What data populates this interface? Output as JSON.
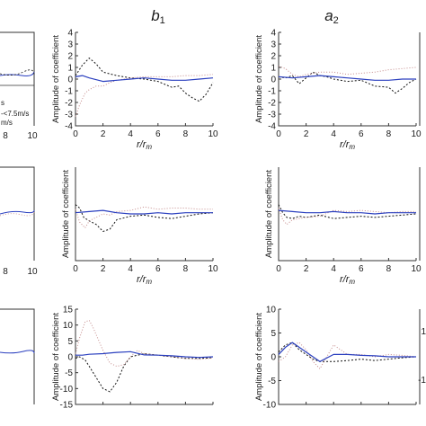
{
  "columns": [
    {
      "symbol": "b",
      "subscript": "1"
    },
    {
      "symbol": "a",
      "subscript": "2"
    }
  ],
  "axis_labels": {
    "y": "Amplitude of coefficient",
    "x_main": "r",
    "x_sub1": "r",
    "x_sub2": "m"
  },
  "legend_fragments": [
    "s",
    "-<7.5m/s",
    "m/s"
  ],
  "edge_ticks": {
    "left": [
      "8",
      "10",
      "8",
      "10",
      "8",
      "10"
    ],
    "right": [
      "1",
      "-1"
    ]
  },
  "chart_data": [
    {
      "type": "line",
      "panel": "row1-b1",
      "xlabel": "r/r_m",
      "ylabel": "Amplitude of coefficient",
      "xlim": [
        0,
        10
      ],
      "ylim": [
        -4,
        4
      ],
      "xticks": [
        "0",
        "2",
        "4",
        "6",
        "8",
        "10"
      ],
      "yticks": [
        "4",
        "3",
        "2",
        "1",
        "0",
        "-1",
        "-2",
        "-3",
        "-4"
      ],
      "series": [
        {
          "color": "#111111",
          "dash": "2,2",
          "x": [
            0,
            0.5,
            1,
            1.5,
            2,
            3,
            4,
            5,
            6,
            7,
            7.5,
            8,
            8.5,
            9,
            9.5,
            10
          ],
          "y": [
            0.3,
            1.2,
            1.8,
            1.3,
            0.6,
            0.3,
            0.1,
            0,
            -0.2,
            -0.7,
            -0.6,
            -1.2,
            -1.6,
            -1.9,
            -1.3,
            -0.3
          ]
        },
        {
          "color": "#c48a8a",
          "dash": "1,2",
          "x": [
            0,
            0.3,
            0.7,
            1,
            1.5,
            2,
            2.5,
            3,
            4,
            5,
            6,
            7,
            8,
            9,
            10
          ],
          "y": [
            -3.2,
            -2.2,
            -1.2,
            -0.9,
            -0.6,
            -0.6,
            -0.3,
            -0.1,
            0.1,
            0.2,
            0.2,
            0.2,
            0.3,
            0.3,
            0.4
          ]
        },
        {
          "color": "#2a3fbf",
          "dash": "",
          "x": [
            0,
            0.5,
            1,
            2,
            3,
            4,
            5,
            6,
            7,
            8,
            9,
            10
          ],
          "y": [
            0.2,
            0.3,
            0.1,
            -0.2,
            -0.1,
            0,
            0.1,
            0,
            -0.1,
            -0.1,
            0,
            0.1
          ]
        }
      ]
    },
    {
      "type": "line",
      "panel": "row1-a2",
      "xlabel": "r/r_m",
      "ylabel": "Amplitude of coefficient",
      "xlim": [
        0,
        10
      ],
      "ylim": [
        -4,
        4
      ],
      "xticks": [
        "0",
        "2",
        "4",
        "6",
        "8",
        "10"
      ],
      "yticks": [
        "4",
        "3",
        "2",
        "1",
        "0",
        "-1",
        "-2",
        "-3",
        "-4"
      ],
      "series": [
        {
          "color": "#111111",
          "dash": "2,2",
          "x": [
            0,
            0.5,
            1,
            1.5,
            2,
            2.5,
            3,
            3.5,
            4,
            5,
            6,
            7,
            8,
            8.5,
            9,
            9.5,
            10
          ],
          "y": [
            0.2,
            0.1,
            0.3,
            -0.4,
            0.1,
            0.6,
            0.3,
            0.2,
            0,
            -0.2,
            -0.1,
            -0.6,
            -0.7,
            -1.2,
            -0.8,
            -0.3,
            0
          ]
        },
        {
          "color": "#c48a8a",
          "dash": "1,2",
          "x": [
            0,
            0.5,
            1,
            1.5,
            2,
            3,
            4,
            5,
            6,
            7,
            8,
            9,
            10
          ],
          "y": [
            1.1,
            0.9,
            0.4,
            0.2,
            0.4,
            0.6,
            0.6,
            0.4,
            0.5,
            0.6,
            0.8,
            0.9,
            1.0
          ]
        },
        {
          "color": "#2a3fbf",
          "dash": "",
          "x": [
            0,
            1,
            2,
            3,
            4,
            5,
            6,
            7,
            8,
            9,
            10
          ],
          "y": [
            0.2,
            0.1,
            0.2,
            0.3,
            0.2,
            0.1,
            0,
            -0.1,
            -0.1,
            0,
            0
          ]
        }
      ]
    },
    {
      "type": "line",
      "panel": "row2-b1",
      "xlabel": "r/r_m",
      "ylabel": "Amplitude of coefficient",
      "xlim": [
        0,
        10
      ],
      "ylim": [
        -4,
        4
      ],
      "xticks": [
        "0",
        "2",
        "4",
        "6",
        "8",
        "10"
      ],
      "yticks": [],
      "series": [
        {
          "color": "#111111",
          "dash": "2,2",
          "x": [
            0,
            0.3,
            0.6,
            1,
            1.5,
            2,
            2.5,
            3,
            4,
            5,
            6,
            7,
            8,
            9,
            10
          ],
          "y": [
            0.8,
            0.5,
            -0.3,
            -0.6,
            -0.9,
            -1.5,
            -1.3,
            -0.5,
            -0.2,
            -0.1,
            -0.3,
            -0.4,
            -0.2,
            0,
            0.1
          ]
        },
        {
          "color": "#c48a8a",
          "dash": "1,2",
          "x": [
            0,
            0.3,
            0.7,
            1,
            1.5,
            2,
            2.5,
            3,
            4,
            5,
            6,
            7,
            8,
            9,
            10
          ],
          "y": [
            0.4,
            -0.7,
            -1.2,
            -0.6,
            -0.3,
            0,
            -0.1,
            0.2,
            0.3,
            0.6,
            0.4,
            0.5,
            0.5,
            0.4,
            0.4
          ]
        },
        {
          "color": "#2a3fbf",
          "dash": "",
          "x": [
            0,
            1,
            2,
            3,
            4,
            5,
            6,
            7,
            8,
            9,
            10
          ],
          "y": [
            0.1,
            0.2,
            0.3,
            0.1,
            0,
            0,
            0.1,
            0,
            0.1,
            0.1,
            0.1
          ]
        }
      ]
    },
    {
      "type": "line",
      "panel": "row2-a2",
      "xlabel": "r/r_m",
      "ylabel": "Amplitude of coefficient",
      "xlim": [
        0,
        10
      ],
      "ylim": [
        -4,
        4
      ],
      "xticks": [
        "0",
        "2",
        "4",
        "6",
        "8",
        "10"
      ],
      "yticks": [],
      "series": [
        {
          "color": "#111111",
          "dash": "2,2",
          "x": [
            0,
            0.3,
            0.6,
            1,
            1.5,
            2,
            3,
            4,
            5,
            6,
            7,
            8,
            9,
            10
          ],
          "y": [
            0.8,
            0.1,
            -0.3,
            -0.4,
            -0.2,
            -0.3,
            -0.1,
            -0.4,
            -0.3,
            -0.2,
            -0.3,
            -0.2,
            -0.1,
            0
          ]
        },
        {
          "color": "#c48a8a",
          "dash": "1,2",
          "x": [
            0,
            0.3,
            0.6,
            1,
            2,
            3,
            4,
            5,
            6,
            7,
            8,
            9,
            10
          ],
          "y": [
            0.5,
            -0.5,
            -0.9,
            -0.5,
            -0.3,
            -0.2,
            0.3,
            0.2,
            0.3,
            0.2,
            0.1,
            0.2,
            0.2
          ]
        },
        {
          "color": "#2a3fbf",
          "dash": "",
          "x": [
            0,
            1,
            2,
            3,
            4,
            5,
            6,
            7,
            8,
            9,
            10
          ],
          "y": [
            0.3,
            0.2,
            0.1,
            0.1,
            0.2,
            0.1,
            0.1,
            0,
            0.1,
            0.1,
            0.1
          ]
        }
      ]
    },
    {
      "type": "line",
      "panel": "row3-b1",
      "xlabel": "",
      "ylabel": "Amplitude of coefficient",
      "xlim": [
        0,
        10
      ],
      "ylim": [
        -15,
        15
      ],
      "xticks": [],
      "yticks": [
        "15",
        "10",
        "5",
        "0",
        "-5",
        "-10",
        "-15"
      ],
      "series": [
        {
          "color": "#111111",
          "dash": "2,2",
          "x": [
            0,
            0.3,
            0.7,
            1,
            1.5,
            2,
            2.5,
            3,
            3.5,
            4,
            5,
            6,
            7,
            8,
            9,
            10
          ],
          "y": [
            -0.5,
            0,
            -1,
            -3,
            -6.5,
            -10,
            -11,
            -8,
            -3,
            0,
            1,
            0.5,
            0,
            -0.5,
            -0.5,
            -0.3
          ]
        },
        {
          "color": "#c48a8a",
          "dash": "1,2",
          "x": [
            0,
            0.3,
            0.7,
            1,
            1.3,
            1.6,
            2,
            2.5,
            3,
            3.5,
            4,
            4.5,
            5,
            6,
            7,
            8,
            9,
            10
          ],
          "y": [
            1,
            6,
            11,
            11.5,
            9,
            6,
            2,
            -2,
            -3,
            -2.5,
            0,
            2,
            1,
            0.5,
            0,
            -0.5,
            -0.8,
            -0.4
          ]
        },
        {
          "color": "#2a3fbf",
          "dash": "",
          "x": [
            0,
            0.5,
            1,
            2,
            3,
            4,
            5,
            6,
            7,
            8,
            9,
            10
          ],
          "y": [
            0.5,
            0.5,
            0.8,
            1,
            1.4,
            1.6,
            0.6,
            0.5,
            0.3,
            0,
            -0.2,
            0
          ]
        }
      ]
    },
    {
      "type": "line",
      "panel": "row3-a2",
      "xlabel": "",
      "ylabel": "Amplitude of coefficient",
      "xlim": [
        0,
        10
      ],
      "ylim": [
        -10,
        10
      ],
      "xticks": [],
      "yticks": [
        "10",
        "5",
        "0",
        "-5",
        "-10"
      ],
      "series": [
        {
          "color": "#111111",
          "dash": "2,2",
          "x": [
            0,
            0.5,
            1,
            1.5,
            2,
            2.5,
            3,
            4,
            5,
            6,
            7,
            8,
            9,
            10
          ],
          "y": [
            1,
            2.5,
            3,
            1.5,
            0.5,
            -0.5,
            -1,
            -1,
            -0.8,
            -0.5,
            -0.8,
            -0.5,
            -0.2,
            0
          ]
        },
        {
          "color": "#c48a8a",
          "dash": "1,2",
          "x": [
            0,
            0.5,
            1,
            1.5,
            2,
            2.5,
            3,
            3.5,
            4,
            5,
            6,
            7,
            8,
            9,
            10
          ],
          "y": [
            -1,
            0,
            2.5,
            3,
            1.5,
            -1,
            -2.5,
            0,
            2.5,
            0.5,
            0.5,
            0,
            0.5,
            0.3,
            0
          ]
        },
        {
          "color": "#2a3fbf",
          "dash": "",
          "x": [
            0,
            0.5,
            1,
            1.5,
            2,
            3,
            4,
            5,
            6,
            7,
            8,
            9,
            10
          ],
          "y": [
            0.5,
            2,
            3,
            2,
            1,
            -1,
            0.5,
            0.5,
            0.3,
            0.2,
            0,
            0,
            0
          ]
        }
      ]
    }
  ]
}
